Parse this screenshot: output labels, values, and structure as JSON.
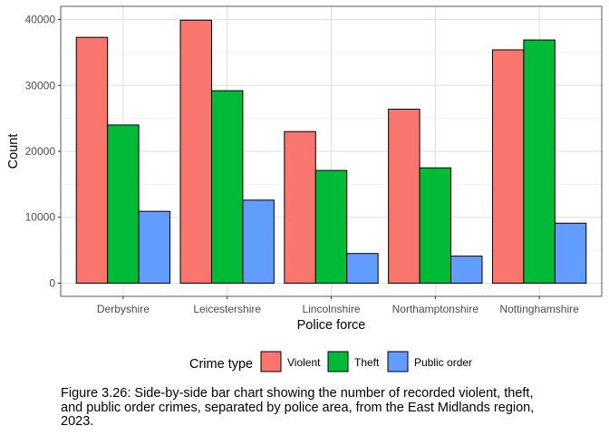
{
  "chart_data": {
    "type": "bar",
    "categories": [
      "Derbyshire",
      "Leicestershire",
      "Lincolnshire",
      "Northamptonshire",
      "Nottinghamshire"
    ],
    "series": [
      {
        "name": "Violent",
        "values": [
          37300,
          39900,
          23000,
          26400,
          35400
        ],
        "color": "#F8766D"
      },
      {
        "name": "Theft",
        "values": [
          24000,
          29200,
          17100,
          17500,
          36900
        ],
        "color": "#00BA38"
      },
      {
        "name": "Public order",
        "values": [
          10900,
          12600,
          4500,
          4100,
          9100
        ],
        "color": "#619CFF"
      }
    ],
    "xlabel": "Police force",
    "ylabel": "Count",
    "ylim": [
      -2000,
      42000
    ],
    "yticks": [
      "0",
      "10000",
      "20000",
      "30000",
      "40000"
    ],
    "legend_title": "Crime type",
    "legend_position": "bottom",
    "grid": true
  },
  "caption": "Figure 3.26: Side-by-side bar chart showing the number of recorded violent, theft, and public order crimes, separated by police area, from the East Midlands region, 2023."
}
